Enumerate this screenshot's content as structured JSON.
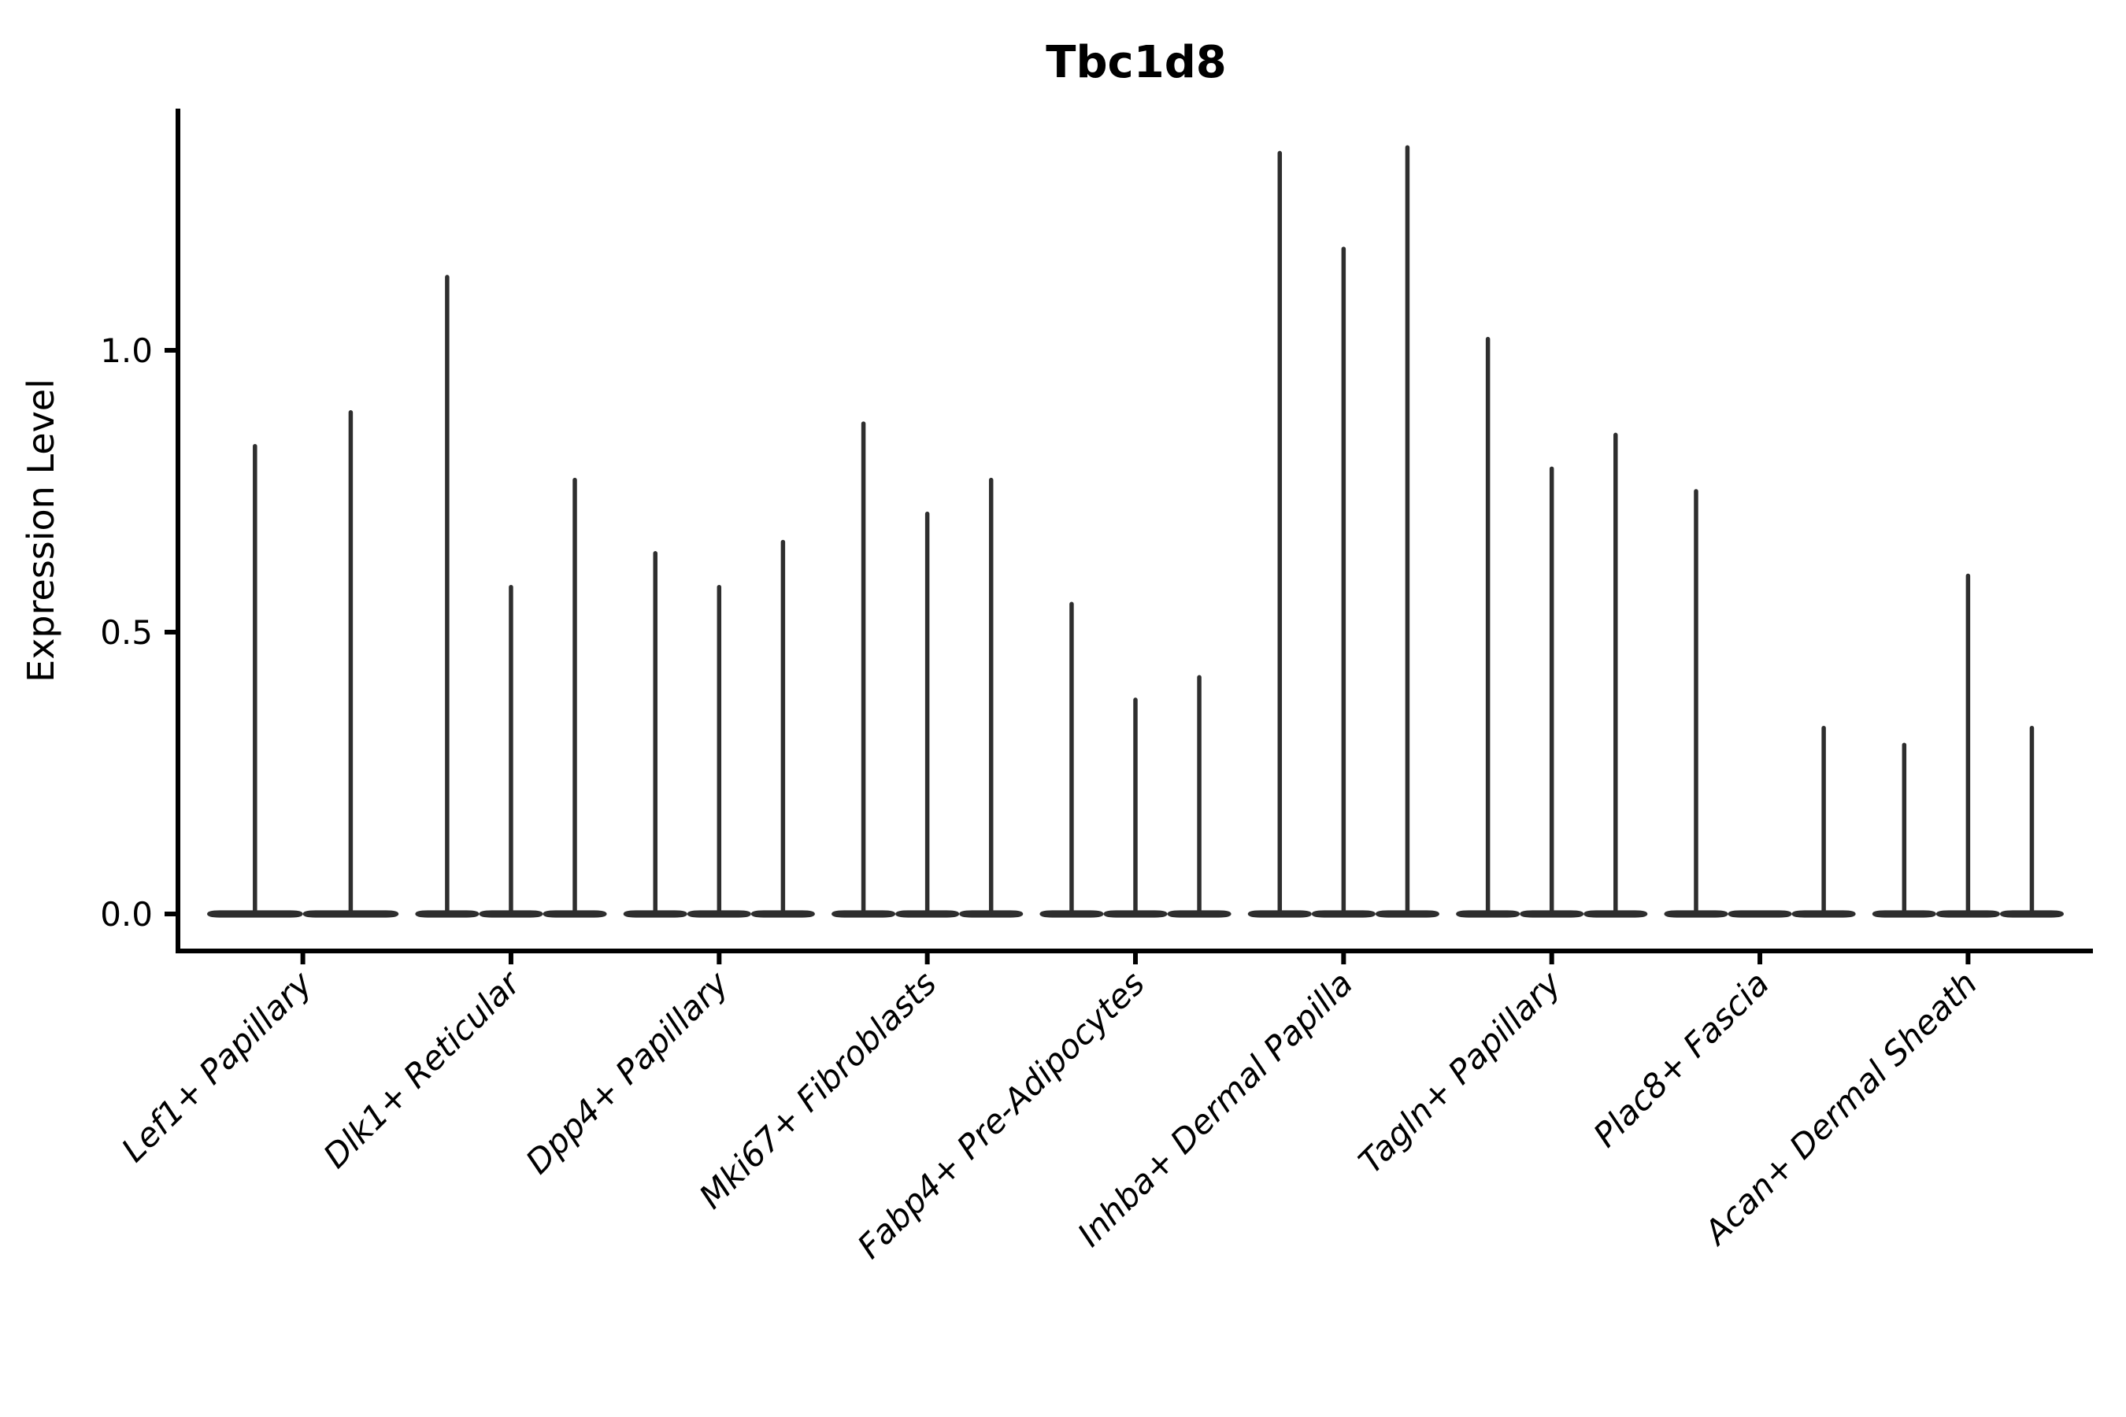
{
  "figure": {
    "background": "#ffffff"
  },
  "chart_data": {
    "type": "violin",
    "title": "Tbc1d8",
    "xlabel": "",
    "ylabel": "Expression Level",
    "ytick_labels": [
      "0.0",
      "0.5",
      "1.0"
    ],
    "ytick_values": [
      0.0,
      0.5,
      1.0
    ],
    "ylim": [
      -0.07,
      1.43
    ],
    "legend": "none",
    "grid": false,
    "description": "Single-cell expression violin plot; each category shows 2-3 very thin violins (density concentrated at 0) drawn as a flat base at 0 with a thin vertical spike up to the max expression value.",
    "categories": [
      "Lef1+ Papillary",
      "Dlk1+ Reticular",
      "Dpp4+ Papillary",
      "Mki67+ Fibroblasts",
      "Fabp4+ Pre-Adipocytes",
      "Inhba+ Dermal Papilla",
      "Tagln+ Papillary",
      "Plac8+ Fascia",
      "Acan+ Dermal Sheath"
    ],
    "groups": [
      {
        "category": "Lef1+ Papillary",
        "violin_max": [
          0.83,
          0.89
        ]
      },
      {
        "category": "Dlk1+ Reticular",
        "violin_max": [
          1.13,
          0.58,
          0.77
        ]
      },
      {
        "category": "Dpp4+ Papillary",
        "violin_max": [
          0.64,
          0.58,
          0.66
        ]
      },
      {
        "category": "Mki67+ Fibroblasts",
        "violin_max": [
          0.87,
          0.71,
          0.77
        ]
      },
      {
        "category": "Fabp4+ Pre-Adipocytes",
        "violin_max": [
          0.55,
          0.38,
          0.42
        ]
      },
      {
        "category": "Inhba+ Dermal Papilla",
        "violin_max": [
          1.35,
          1.18,
          1.36
        ]
      },
      {
        "category": "Tagln+ Papillary",
        "violin_max": [
          1.02,
          0.79,
          0.85
        ]
      },
      {
        "category": "Plac8+ Fascia",
        "violin_max": [
          0.75,
          0,
          0.33
        ]
      },
      {
        "category": "Acan+ Dermal Sheath",
        "violin_max": [
          0.3,
          0.6,
          0.33
        ]
      }
    ],
    "colors": {
      "violin_line": "#2e2e2e",
      "axis": "#000000",
      "text": "#000000",
      "background": "#ffffff"
    }
  }
}
